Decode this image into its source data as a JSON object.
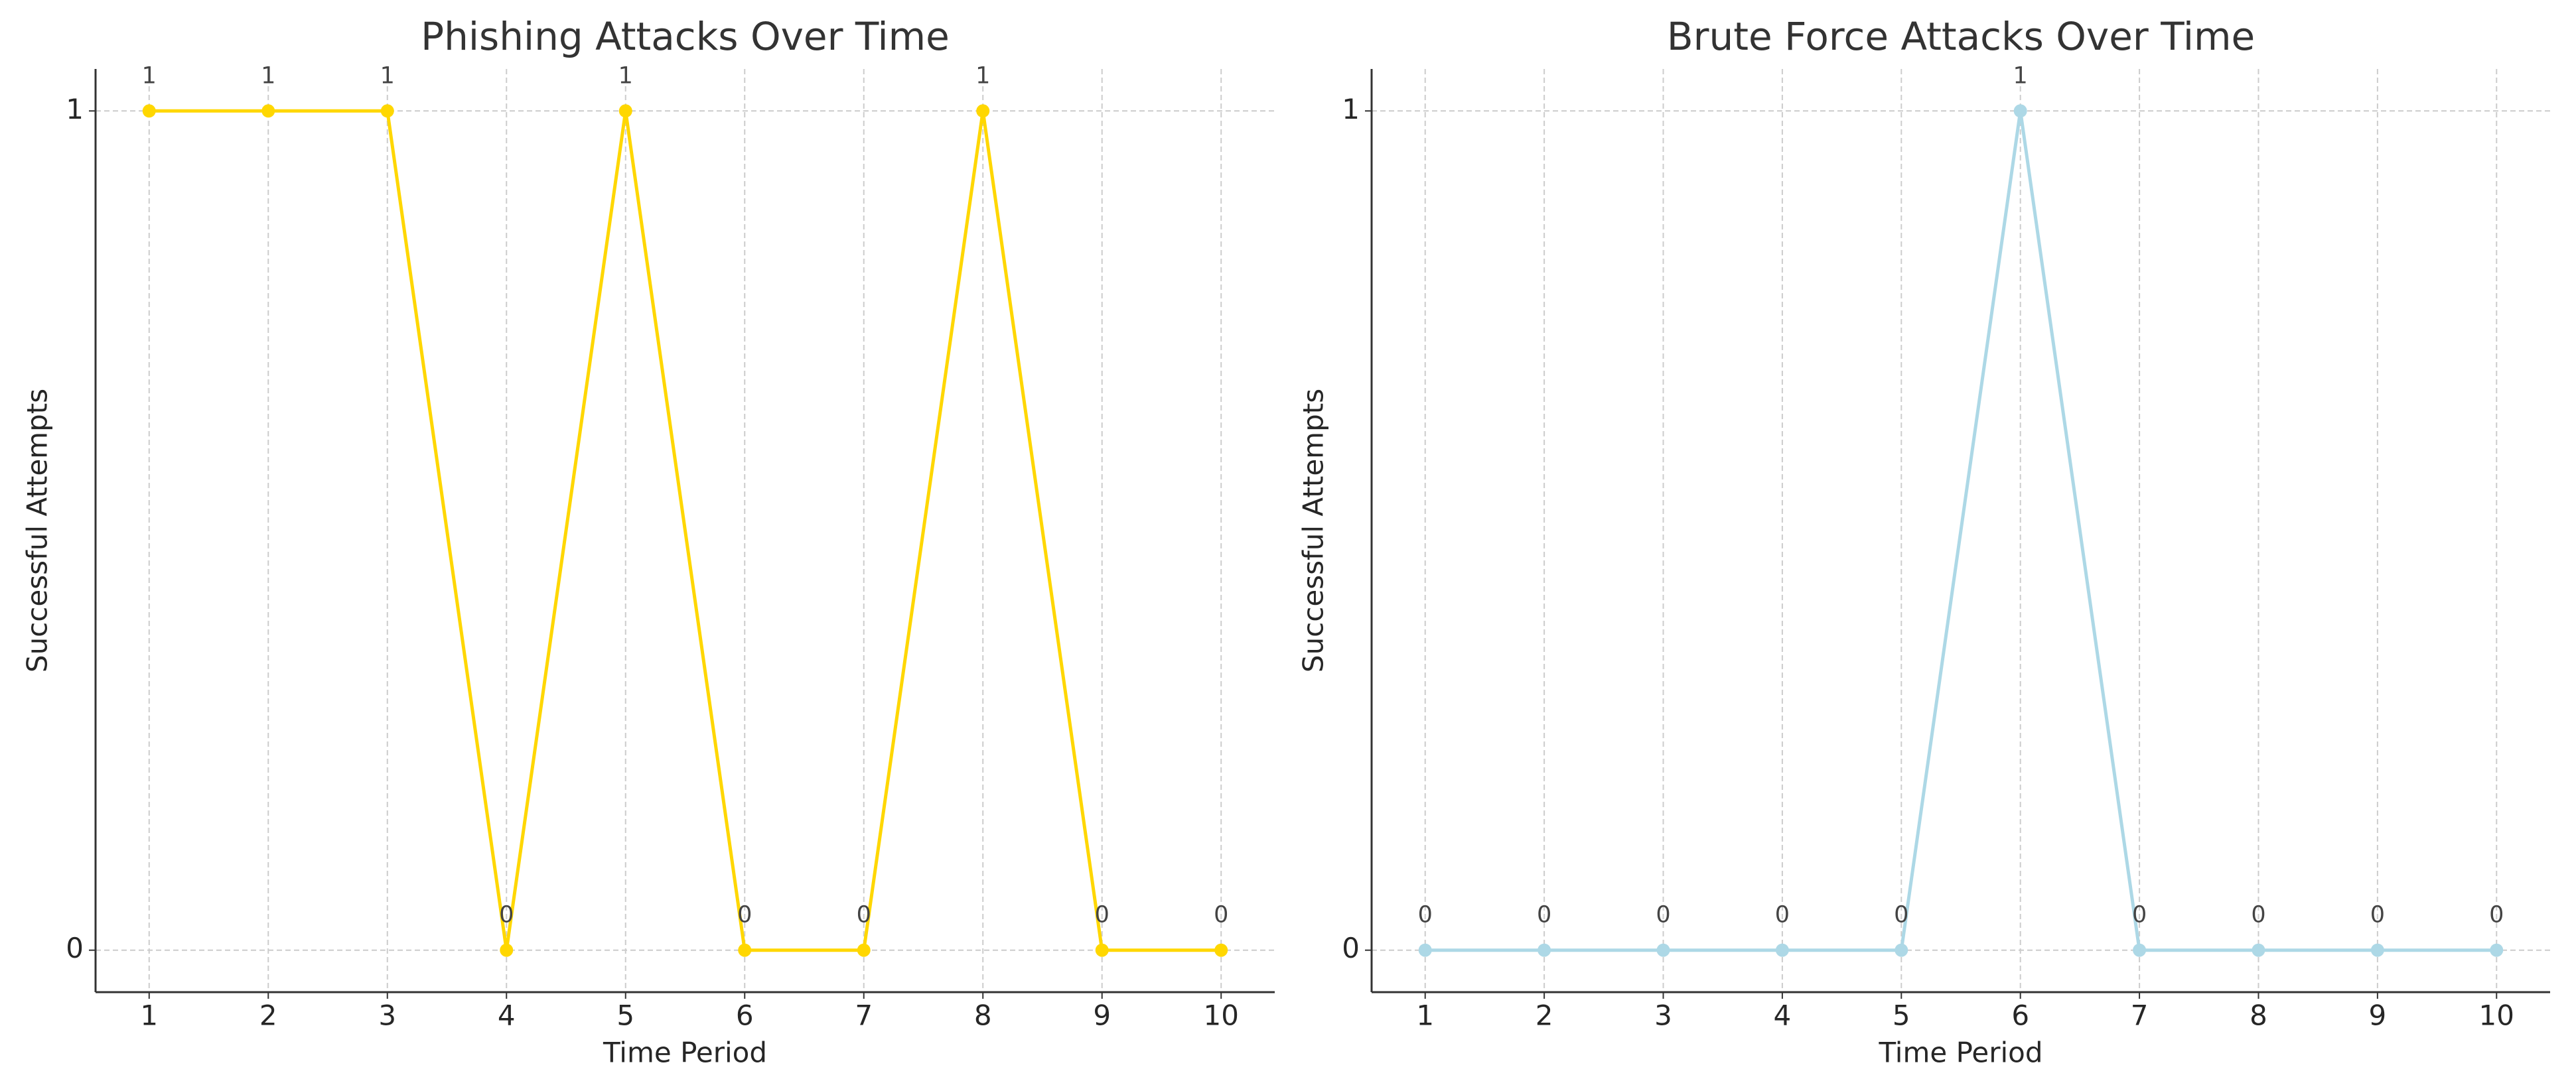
{
  "chart_data": [
    {
      "type": "line",
      "title": "Phishing Attacks Over Time",
      "x_label": "Time Period",
      "y_label": "Successful Attempts",
      "x": [
        1,
        2,
        3,
        4,
        5,
        6,
        7,
        8,
        9,
        10
      ],
      "values": [
        1,
        1,
        1,
        0,
        1,
        0,
        0,
        1,
        0,
        0
      ],
      "color": "#ffd700",
      "xlim": [
        0.55,
        10.45
      ],
      "ylim": [
        -0.05,
        1.05
      ],
      "xticks": [
        1,
        2,
        3,
        4,
        5,
        6,
        7,
        8,
        9,
        10
      ],
      "yticks": [
        0,
        1
      ],
      "grid": true
    },
    {
      "type": "line",
      "title": "Brute Force Attacks Over Time",
      "x_label": "Time Period",
      "y_label": "Successful Attempts",
      "x": [
        1,
        2,
        3,
        4,
        5,
        6,
        7,
        8,
        9,
        10
      ],
      "values": [
        0,
        0,
        0,
        0,
        0,
        1,
        0,
        0,
        0,
        0
      ],
      "color": "#add8e6",
      "xlim": [
        0.55,
        10.45
      ],
      "ylim": [
        -0.05,
        1.05
      ],
      "xticks": [
        1,
        2,
        3,
        4,
        5,
        6,
        7,
        8,
        9,
        10
      ],
      "yticks": [
        0,
        1
      ],
      "grid": true
    }
  ]
}
